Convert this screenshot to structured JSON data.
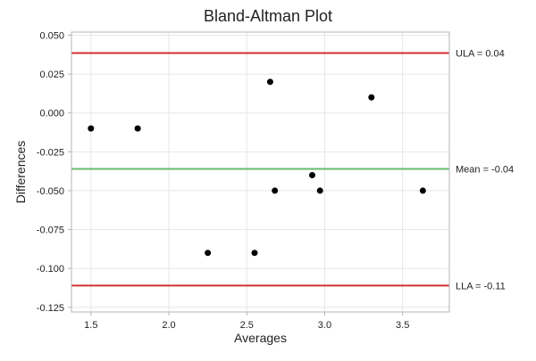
{
  "chart_data": {
    "type": "scatter",
    "title": "Bland-Altman Plot",
    "xlabel": "Averages",
    "ylabel": "Differences",
    "xlim": [
      1.375,
      3.8
    ],
    "ylim": [
      -0.128,
      0.052
    ],
    "grid": true,
    "xticks": [
      1.5,
      2.0,
      2.5,
      3.0,
      3.5
    ],
    "xtick_labels": [
      "1.5",
      "2.0",
      "2.5",
      "3.0",
      "3.5"
    ],
    "yticks": [
      0.05,
      0.025,
      0.0,
      -0.025,
      -0.05,
      -0.075,
      -0.1,
      -0.125
    ],
    "ytick_labels": [
      "0.050",
      "0.025",
      "0.000",
      "-0.025",
      "-0.050",
      "-0.075",
      "-0.100",
      "-0.125"
    ],
    "points": [
      {
        "x": 1.5,
        "y": -0.01
      },
      {
        "x": 1.8,
        "y": -0.01
      },
      {
        "x": 2.25,
        "y": -0.09
      },
      {
        "x": 2.55,
        "y": -0.09
      },
      {
        "x": 2.65,
        "y": 0.02
      },
      {
        "x": 2.68,
        "y": -0.05
      },
      {
        "x": 2.92,
        "y": -0.04
      },
      {
        "x": 2.97,
        "y": -0.05
      },
      {
        "x": 3.3,
        "y": 0.01
      },
      {
        "x": 3.63,
        "y": -0.05
      }
    ],
    "reference_lines": [
      {
        "label": "ULA = 0.04",
        "y": 0.0385,
        "color": "#d32f2f"
      },
      {
        "label": "Mean = -0.04",
        "y": -0.036,
        "color": "#66bb6a"
      },
      {
        "label": "LLA = -0.11",
        "y": -0.111,
        "color": "#d32f2f"
      }
    ],
    "colors": {
      "point": "#000000",
      "grid": "#e6e6e6",
      "axis": "#b5b5b5"
    }
  }
}
